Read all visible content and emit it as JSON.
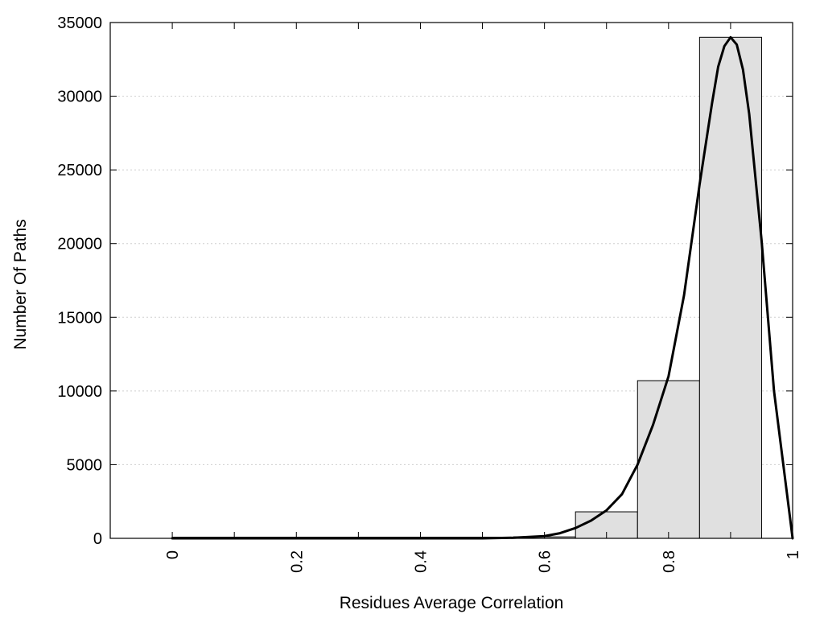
{
  "chart_data": {
    "type": "bar",
    "title": "",
    "xlabel": "Residues Average Correlation",
    "ylabel": "Number Of Paths",
    "xlim": [
      -0.1,
      1.0
    ],
    "ylim": [
      0,
      35000
    ],
    "x_ticks": [
      0,
      0.2,
      0.4,
      0.6,
      0.8,
      1
    ],
    "x_tick_labels": [
      "0",
      "0.2",
      "0.4",
      "0.6",
      "0.8",
      "1"
    ],
    "x_minor_ticks": [
      0.1,
      0.3,
      0.5,
      0.7,
      0.9
    ],
    "y_ticks": [
      0,
      5000,
      10000,
      15000,
      20000,
      25000,
      30000,
      35000
    ],
    "y_tick_labels": [
      "0",
      "5000",
      "10000",
      "15000",
      "20000",
      "25000",
      "30000",
      "35000"
    ],
    "grid": true,
    "bar_color": "#e0e0e0",
    "line_color": "#000000",
    "bars": [
      {
        "x0": 0.0,
        "x1": 0.05,
        "value": 0
      },
      {
        "x0": 0.05,
        "x1": 0.15,
        "value": 0
      },
      {
        "x0": 0.15,
        "x1": 0.25,
        "value": 0
      },
      {
        "x0": 0.25,
        "x1": 0.35,
        "value": 0
      },
      {
        "x0": 0.35,
        "x1": 0.45,
        "value": 0
      },
      {
        "x0": 0.45,
        "x1": 0.55,
        "value": 0
      },
      {
        "x0": 0.55,
        "x1": 0.65,
        "value": 100
      },
      {
        "x0": 0.65,
        "x1": 0.75,
        "value": 1800
      },
      {
        "x0": 0.75,
        "x1": 0.85,
        "value": 10700
      },
      {
        "x0": 0.85,
        "x1": 0.95,
        "value": 34000
      }
    ],
    "series": [
      {
        "type": "line",
        "x": [
          0,
          0.1,
          0.2,
          0.3,
          0.4,
          0.5,
          0.55,
          0.6,
          0.625,
          0.65,
          0.675,
          0.7,
          0.725,
          0.75,
          0.775,
          0.8,
          0.825,
          0.85,
          0.87,
          0.88,
          0.89,
          0.9,
          0.91,
          0.92,
          0.93,
          0.95,
          0.97,
          1.0
        ],
        "y": [
          0,
          0,
          0,
          0,
          0,
          0,
          40,
          150,
          350,
          700,
          1200,
          1900,
          3000,
          5000,
          7700,
          11000,
          16500,
          24000,
          29500,
          32000,
          33400,
          34000,
          33500,
          31800,
          28800,
          20200,
          10000,
          0
        ]
      }
    ]
  }
}
